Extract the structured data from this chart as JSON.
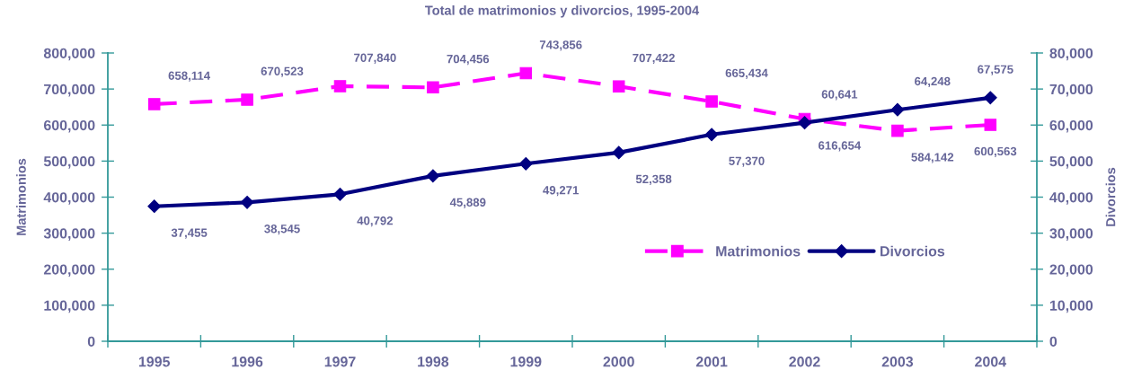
{
  "chart_data": {
    "type": "line",
    "title": "Total de matrimonios y divorcios, 1995-2004",
    "ylabel": "Matrimonios",
    "y2label": "Divorcios",
    "categories": [
      "1995",
      "1996",
      "1997",
      "1998",
      "1999",
      "2000",
      "2001",
      "2002",
      "2003",
      "2004"
    ],
    "series": [
      {
        "name": "Matrimonios",
        "color": "#ff00ff",
        "marker": "square",
        "line_style": "dashed",
        "values": [
          658114,
          670523,
          707840,
          704456,
          743856,
          707422,
          665434,
          616654,
          584142,
          600563
        ],
        "value_labels": [
          "658,114",
          "670,523",
          "707,840",
          "704,456",
          "743,856",
          "707,422",
          "665,434",
          "616,654",
          "584,142",
          "600,563"
        ]
      },
      {
        "name": "Divorcios",
        "color": "#000080",
        "marker": "diamond",
        "line_style": "solid",
        "axis": "y2",
        "values": [
          37455,
          38545,
          40792,
          45889,
          49271,
          52358,
          57370,
          60641,
          64248,
          67575
        ],
        "value_labels": [
          "37,455",
          "38,545",
          "40,792",
          "45,889",
          "49,271",
          "52,358",
          "57,370",
          "60,641",
          "64,248",
          "67,575"
        ]
      }
    ],
    "ylim": [
      0,
      800000
    ],
    "yticks": [
      0,
      {
        "value": 100000,
        "label": "100,000"
      },
      {
        "value": 200000,
        "label": "200,000"
      },
      {
        "value": 300000,
        "label": "300,000"
      },
      {
        "value": 400000,
        "label": "400,000"
      },
      {
        "value": 500000,
        "label": "500,000"
      },
      {
        "value": 600000,
        "label": "600,000"
      },
      {
        "value": 700000,
        "label": "700,000"
      },
      {
        "value": 800000,
        "label": "800,000"
      }
    ],
    "y2lim": [
      0,
      80000
    ],
    "y2ticks": [
      0,
      {
        "value": 10000,
        "label": "10,000"
      },
      {
        "value": 20000,
        "label": "20,000"
      },
      {
        "value": 30000,
        "label": "30,000"
      },
      {
        "value": 40000,
        "label": "40,000"
      },
      {
        "value": 50000,
        "label": "50,000"
      },
      {
        "value": 60000,
        "label": "60,000"
      },
      {
        "value": 70000,
        "label": "70,000"
      },
      {
        "value": 80000,
        "label": "80,000"
      }
    ],
    "legend": "lower right",
    "grid": false
  }
}
